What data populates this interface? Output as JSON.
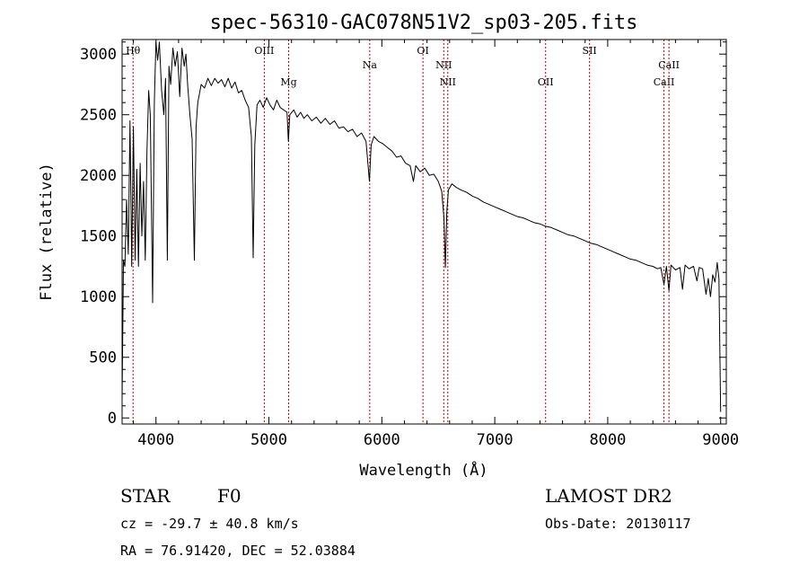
{
  "chart_data": {
    "type": "line",
    "title": "spec-56310-GAC078N51V2_sp03-205.fits",
    "xlabel": "Wavelength (Å)",
    "ylabel": "Flux (relative)",
    "xlim": [
      3700,
      9050
    ],
    "ylim": [
      -50,
      3120
    ],
    "xticks": [
      4000,
      5000,
      6000,
      7000,
      8000,
      9000
    ],
    "yticks": [
      0,
      500,
      1000,
      1500,
      2000,
      2500,
      3000
    ],
    "grid": false,
    "series": [
      {
        "color": "#000000",
        "points": [
          [
            3700,
            150
          ],
          [
            3712,
            1300
          ],
          [
            3725,
            1250
          ],
          [
            3740,
            1800
          ],
          [
            3755,
            1350
          ],
          [
            3770,
            2450
          ],
          [
            3785,
            1250
          ],
          [
            3800,
            2400
          ],
          [
            3815,
            1300
          ],
          [
            3830,
            2050
          ],
          [
            3845,
            1250
          ],
          [
            3860,
            2100
          ],
          [
            3875,
            1500
          ],
          [
            3890,
            1950
          ],
          [
            3905,
            1300
          ],
          [
            3920,
            2200
          ],
          [
            3935,
            2700
          ],
          [
            3950,
            2500
          ],
          [
            3970,
            950
          ],
          [
            3985,
            2600
          ],
          [
            4000,
            3100
          ],
          [
            4015,
            2950
          ],
          [
            4030,
            3100
          ],
          [
            4050,
            2700
          ],
          [
            4070,
            2500
          ],
          [
            4085,
            2800
          ],
          [
            4101,
            1300
          ],
          [
            4115,
            2900
          ],
          [
            4130,
            2750
          ],
          [
            4150,
            3050
          ],
          [
            4170,
            2900
          ],
          [
            4190,
            3020
          ],
          [
            4210,
            2650
          ],
          [
            4230,
            3050
          ],
          [
            4250,
            2900
          ],
          [
            4265,
            3000
          ],
          [
            4280,
            2750
          ],
          [
            4300,
            2500
          ],
          [
            4320,
            2300
          ],
          [
            4340,
            1300
          ],
          [
            4355,
            2400
          ],
          [
            4370,
            2600
          ],
          [
            4400,
            2750
          ],
          [
            4430,
            2720
          ],
          [
            4460,
            2800
          ],
          [
            4490,
            2740
          ],
          [
            4520,
            2800
          ],
          [
            4550,
            2760
          ],
          [
            4580,
            2790
          ],
          [
            4610,
            2730
          ],
          [
            4640,
            2800
          ],
          [
            4670,
            2720
          ],
          [
            4700,
            2770
          ],
          [
            4730,
            2680
          ],
          [
            4760,
            2700
          ],
          [
            4790,
            2620
          ],
          [
            4820,
            2560
          ],
          [
            4845,
            2320
          ],
          [
            4861,
            1320
          ],
          [
            4875,
            2250
          ],
          [
            4895,
            2580
          ],
          [
            4920,
            2620
          ],
          [
            4950,
            2560
          ],
          [
            4980,
            2640
          ],
          [
            5010,
            2580
          ],
          [
            5040,
            2540
          ],
          [
            5070,
            2620
          ],
          [
            5100,
            2560
          ],
          [
            5130,
            2540
          ],
          [
            5160,
            2520
          ],
          [
            5172,
            2280
          ],
          [
            5185,
            2500
          ],
          [
            5220,
            2540
          ],
          [
            5250,
            2480
          ],
          [
            5280,
            2520
          ],
          [
            5310,
            2470
          ],
          [
            5340,
            2500
          ],
          [
            5380,
            2450
          ],
          [
            5420,
            2480
          ],
          [
            5460,
            2430
          ],
          [
            5500,
            2470
          ],
          [
            5540,
            2420
          ],
          [
            5580,
            2450
          ],
          [
            5620,
            2390
          ],
          [
            5660,
            2400
          ],
          [
            5700,
            2360
          ],
          [
            5740,
            2380
          ],
          [
            5780,
            2320
          ],
          [
            5820,
            2350
          ],
          [
            5860,
            2280
          ],
          [
            5890,
            1950
          ],
          [
            5905,
            2250
          ],
          [
            5930,
            2320
          ],
          [
            5970,
            2280
          ],
          [
            6010,
            2260
          ],
          [
            6050,
            2230
          ],
          [
            6090,
            2200
          ],
          [
            6130,
            2150
          ],
          [
            6170,
            2160
          ],
          [
            6210,
            2100
          ],
          [
            6250,
            2080
          ],
          [
            6280,
            1950
          ],
          [
            6300,
            2080
          ],
          [
            6340,
            2030
          ],
          [
            6380,
            2060
          ],
          [
            6420,
            2000
          ],
          [
            6460,
            2010
          ],
          [
            6500,
            1950
          ],
          [
            6530,
            1870
          ],
          [
            6550,
            1650
          ],
          [
            6563,
            1240
          ],
          [
            6575,
            1700
          ],
          [
            6590,
            1880
          ],
          [
            6620,
            1930
          ],
          [
            6660,
            1900
          ],
          [
            6700,
            1880
          ],
          [
            6750,
            1860
          ],
          [
            6800,
            1830
          ],
          [
            6850,
            1810
          ],
          [
            6900,
            1780
          ],
          [
            6950,
            1760
          ],
          [
            7000,
            1740
          ],
          [
            7050,
            1720
          ],
          [
            7100,
            1700
          ],
          [
            7150,
            1680
          ],
          [
            7200,
            1660
          ],
          [
            7250,
            1650
          ],
          [
            7300,
            1630
          ],
          [
            7350,
            1610
          ],
          [
            7400,
            1600
          ],
          [
            7450,
            1580
          ],
          [
            7500,
            1570
          ],
          [
            7550,
            1550
          ],
          [
            7600,
            1530
          ],
          [
            7650,
            1510
          ],
          [
            7700,
            1500
          ],
          [
            7750,
            1480
          ],
          [
            7800,
            1460
          ],
          [
            7850,
            1440
          ],
          [
            7900,
            1430
          ],
          [
            7950,
            1410
          ],
          [
            8000,
            1390
          ],
          [
            8050,
            1370
          ],
          [
            8100,
            1350
          ],
          [
            8150,
            1330
          ],
          [
            8200,
            1310
          ],
          [
            8250,
            1300
          ],
          [
            8300,
            1280
          ],
          [
            8350,
            1260
          ],
          [
            8400,
            1250
          ],
          [
            8440,
            1230
          ],
          [
            8470,
            1240
          ],
          [
            8498,
            1100
          ],
          [
            8520,
            1250
          ],
          [
            8542,
            1050
          ],
          [
            8560,
            1260
          ],
          [
            8600,
            1220
          ],
          [
            8640,
            1240
          ],
          [
            8662,
            1060
          ],
          [
            8685,
            1260
          ],
          [
            8720,
            1230
          ],
          [
            8760,
            1250
          ],
          [
            8790,
            1130
          ],
          [
            8810,
            1240
          ],
          [
            8840,
            1230
          ],
          [
            8870,
            1020
          ],
          [
            8890,
            1150
          ],
          [
            8910,
            1000
          ],
          [
            8930,
            1180
          ],
          [
            8950,
            1120
          ],
          [
            8970,
            1280
          ],
          [
            8985,
            1150
          ],
          [
            9000,
            50
          ]
        ]
      }
    ],
    "annotations": [
      {
        "label": "Hθ",
        "x": 3797,
        "row": 0
      },
      {
        "label": "OIII",
        "x": 4959,
        "row": 0
      },
      {
        "label": "Mg",
        "x": 5175,
        "row": 2
      },
      {
        "label": "Na",
        "x": 5893,
        "row": 1
      },
      {
        "label": "OI",
        "x": 6364,
        "row": 0
      },
      {
        "label": "NII",
        "x": 6548,
        "row": 1
      },
      {
        "label": "NII",
        "x": 6584,
        "row": 2
      },
      {
        "label": "OII",
        "x": 7450,
        "row": 2
      },
      {
        "label": "SII",
        "x": 7839,
        "row": 0
      },
      {
        "label": "CaII",
        "x": 8498,
        "row": 2
      },
      {
        "label": "CaII",
        "x": 8542,
        "row": 1
      }
    ],
    "annotation_line_color": "#c00000",
    "line_color": "#000000",
    "background": "#ffffff"
  },
  "info": {
    "object_class": "STAR",
    "subclass": "F0",
    "survey": "LAMOST DR2",
    "redshift_line": "cz = -29.7 ± 40.8 km/s",
    "obs_date_line": "Obs-Date: 20130117",
    "coords_line": "RA =  76.91420, DEC =  52.03884"
  }
}
